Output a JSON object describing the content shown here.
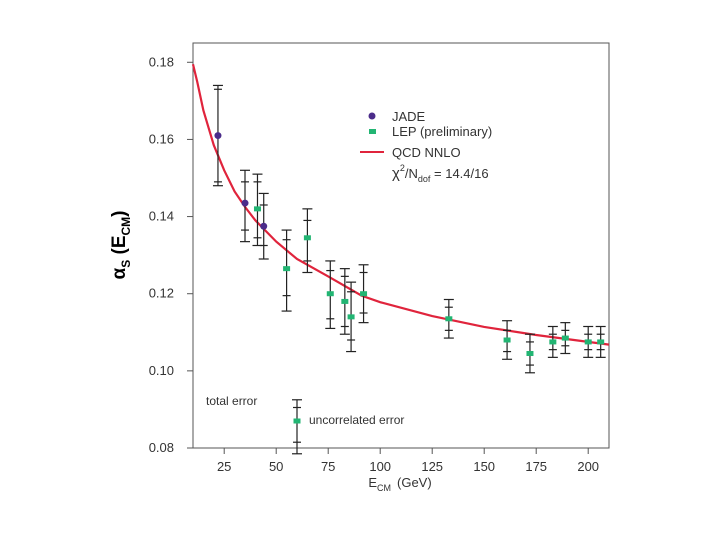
{
  "chart_data": {
    "type": "scatter",
    "title": "",
    "xlabel_main": "E",
    "xlabel_sub": "CM",
    "xlabel_unit": "(GeV)",
    "ylabel_main": "α",
    "ylabel_sub1": "S",
    "ylabel_open": " (E",
    "ylabel_sub2": "CM",
    "ylabel_close": ")",
    "xlim": [
      10,
      210
    ],
    "ylim": [
      0.08,
      0.185
    ],
    "xticks": [
      25,
      50,
      75,
      100,
      125,
      150,
      175,
      200
    ],
    "yticks": [
      "0.08",
      "0.10",
      "0.12",
      "0.14",
      "0.16",
      "0.18"
    ],
    "colors": {
      "jade": "#4b2c8a",
      "lep": "#22b573",
      "fit": "#e0243c",
      "errorbar": "#222222",
      "frame": "#555555"
    },
    "legend": {
      "jade": "JADE",
      "lep": "LEP (preliminary)",
      "fit": "QCD NNLO",
      "chi_prefix": "χ",
      "chi_sup": "2",
      "chi_mid": "/N",
      "chi_sub": "dof",
      "chi_value": " = 14.4/16"
    },
    "inset": {
      "total_error": "total error",
      "uncorrelated_error": "uncorrelated error",
      "x": 60,
      "y": 0.087,
      "tot_lo": 0.0785,
      "tot_hi": 0.0925,
      "unc_lo": 0.0815,
      "unc_hi": 0.0905
    },
    "series": [
      {
        "name": "JADE",
        "points": [
          {
            "x": 22,
            "y": 0.161,
            "tot_lo": 0.148,
            "tot_hi": 0.174,
            "unc_lo": 0.149,
            "unc_hi": 0.173
          },
          {
            "x": 35,
            "y": 0.1435,
            "tot_lo": 0.1335,
            "tot_hi": 0.152,
            "unc_lo": 0.1365,
            "unc_hi": 0.149
          },
          {
            "x": 44,
            "y": 0.1375,
            "tot_lo": 0.129,
            "tot_hi": 0.146,
            "unc_lo": 0.1325,
            "unc_hi": 0.143
          }
        ]
      },
      {
        "name": "LEP (preliminary)",
        "points": [
          {
            "x": 41,
            "y": 0.142,
            "tot_lo": 0.1325,
            "tot_hi": 0.151,
            "unc_lo": 0.1345,
            "unc_hi": 0.149
          },
          {
            "x": 55,
            "y": 0.1265,
            "tot_lo": 0.1155,
            "tot_hi": 0.1365,
            "unc_lo": 0.1195,
            "unc_hi": 0.134
          },
          {
            "x": 65,
            "y": 0.1345,
            "tot_lo": 0.1255,
            "tot_hi": 0.142,
            "unc_lo": 0.1285,
            "unc_hi": 0.139
          },
          {
            "x": 76,
            "y": 0.12,
            "tot_lo": 0.111,
            "tot_hi": 0.1285,
            "unc_lo": 0.1135,
            "unc_hi": 0.126
          },
          {
            "x": 83,
            "y": 0.118,
            "tot_lo": 0.1095,
            "tot_hi": 0.1265,
            "unc_lo": 0.1115,
            "unc_hi": 0.1245
          },
          {
            "x": 86,
            "y": 0.114,
            "tot_lo": 0.105,
            "tot_hi": 0.123,
            "unc_lo": 0.108,
            "unc_hi": 0.1205
          },
          {
            "x": 92,
            "y": 0.12,
            "tot_lo": 0.1125,
            "tot_hi": 0.1275,
            "unc_lo": 0.115,
            "unc_hi": 0.1255
          },
          {
            "x": 133,
            "y": 0.1135,
            "tot_lo": 0.1085,
            "tot_hi": 0.1185,
            "unc_lo": 0.1105,
            "unc_hi": 0.1165
          },
          {
            "x": 161,
            "y": 0.108,
            "tot_lo": 0.103,
            "tot_hi": 0.113,
            "unc_lo": 0.105,
            "unc_hi": 0.1105
          },
          {
            "x": 172,
            "y": 0.1045,
            "tot_lo": 0.0995,
            "tot_hi": 0.1095,
            "unc_lo": 0.1015,
            "unc_hi": 0.1075
          },
          {
            "x": 183,
            "y": 0.1075,
            "tot_lo": 0.1035,
            "tot_hi": 0.1115,
            "unc_lo": 0.1055,
            "unc_hi": 0.1095
          },
          {
            "x": 189,
            "y": 0.1085,
            "tot_lo": 0.1045,
            "tot_hi": 0.1125,
            "unc_lo": 0.1065,
            "unc_hi": 0.1105
          },
          {
            "x": 200,
            "y": 0.1075,
            "tot_lo": 0.1035,
            "tot_hi": 0.1115,
            "unc_lo": 0.1055,
            "unc_hi": 0.1095
          },
          {
            "x": 206,
            "y": 0.1075,
            "tot_lo": 0.1035,
            "tot_hi": 0.1115,
            "unc_lo": 0.1055,
            "unc_hi": 0.1095
          }
        ]
      }
    ],
    "fit_curve": {
      "name": "QCD NNLO",
      "points": [
        [
          10,
          0.1795
        ],
        [
          12,
          0.175
        ],
        [
          15,
          0.1675
        ],
        [
          20,
          0.1585
        ],
        [
          25,
          0.152
        ],
        [
          30,
          0.1465
        ],
        [
          35,
          0.1425
        ],
        [
          40,
          0.139
        ],
        [
          50,
          0.1335
        ],
        [
          60,
          0.129
        ],
        [
          75,
          0.1245
        ],
        [
          91,
          0.1195
        ],
        [
          100,
          0.1178
        ],
        [
          125,
          0.1142
        ],
        [
          150,
          0.1114
        ],
        [
          175,
          0.1093
        ],
        [
          200,
          0.1075
        ],
        [
          210,
          0.1068
        ]
      ]
    }
  }
}
